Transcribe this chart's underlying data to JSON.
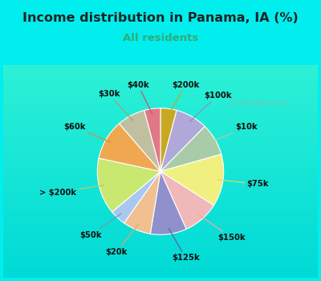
{
  "title": "Income distribution in Panama, IA (%)",
  "subtitle": "All residents",
  "bg_color": "#00EEEE",
  "chart_bg_top": "#f0faf5",
  "chart_bg_bottom": "#d0ede0",
  "labels_cw": [
    "$200k",
    "$100k",
    "$10k",
    "$75k",
    "$150k",
    "$125k",
    "$20k",
    "$50k",
    "> $200k",
    "$60k",
    "$30k",
    "$40k"
  ],
  "values_cw": [
    4,
    8,
    8,
    13,
    9,
    9,
    7,
    4,
    14,
    10,
    7,
    4
  ],
  "colors_cw": [
    "#c8a820",
    "#b0a8d8",
    "#a8cca8",
    "#f0f080",
    "#f0b8b8",
    "#9090cc",
    "#f0c090",
    "#a8c8f0",
    "#c8e870",
    "#f0a850",
    "#c0c0a0",
    "#e07888"
  ],
  "line_colors": [
    "#c8a820",
    "#9090b8",
    "#a8cca8",
    "#d8d870",
    "#f0a8a8",
    "#6060a0",
    "#d8a870",
    "#7898b8",
    "#b0d060",
    "#d09040",
    "#a0a080",
    "#c05868"
  ],
  "startangle": 90,
  "figsize": [
    4.0,
    3.5
  ],
  "dpi": 100
}
